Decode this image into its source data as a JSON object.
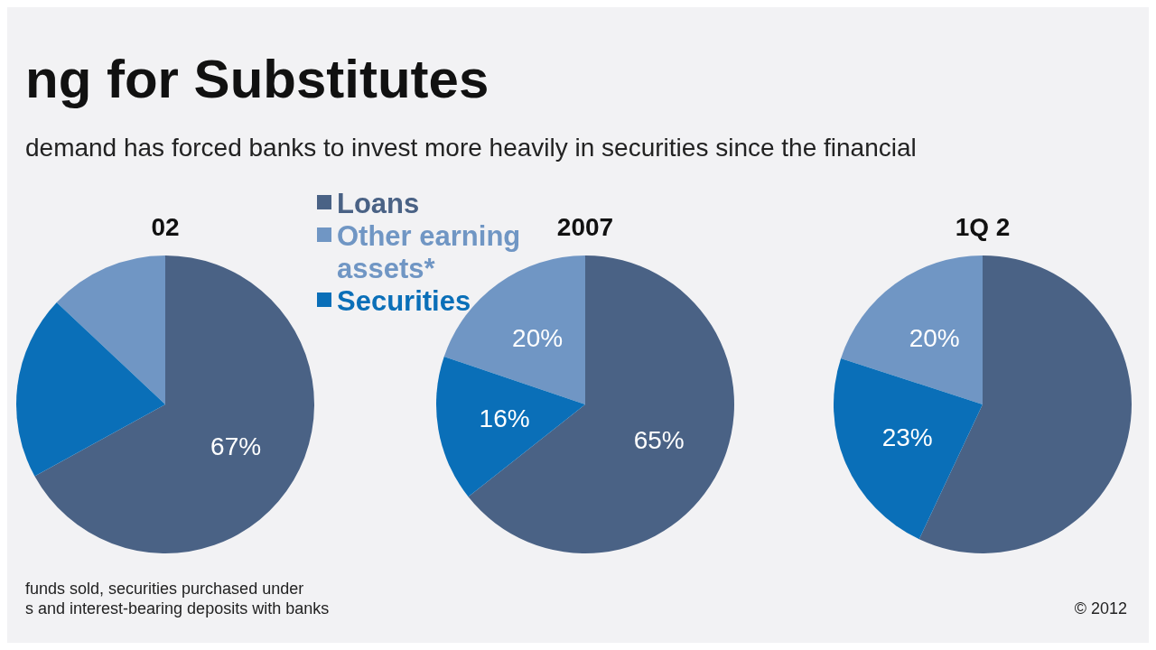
{
  "chart_data": [
    {
      "type": "pie",
      "title": "02",
      "categories": [
        "Loans",
        "Other earning assets*",
        "Securities"
      ],
      "values": [
        67,
        13,
        20
      ],
      "colors": [
        "#4a6285",
        "#7096c4",
        "#0a6fb8"
      ],
      "value_labels": [
        "67%",
        null,
        null
      ],
      "legend": "right",
      "annotations": [
        "ng for Substitutes",
        "demand has forced banks to invest more heavily in securities since the financial",
        "funds sold, securities purchased under",
        "s and interest-bearing deposits with banks"
      ]
    },
    {
      "type": "pie",
      "title": "2007",
      "categories": [
        null,
        null,
        null
      ],
      "values": [
        65,
        20,
        16
      ],
      "colors": [
        "#4a6285",
        "#7096c4",
        "#0a6fb8"
      ],
      "value_labels": [
        "65%",
        "20%",
        "16%"
      ]
    },
    {
      "type": "pie",
      "title": "1Q 2",
      "categories": [
        null,
        null,
        null
      ],
      "values": [
        57,
        20,
        23
      ],
      "colors": [
        "#4a6285",
        "#7096c4",
        "#0a6fb8"
      ],
      "value_labels": [
        null,
        "20%",
        "23%"
      ],
      "annotations": [
        "© 2012"
      ]
    }
  ]
}
